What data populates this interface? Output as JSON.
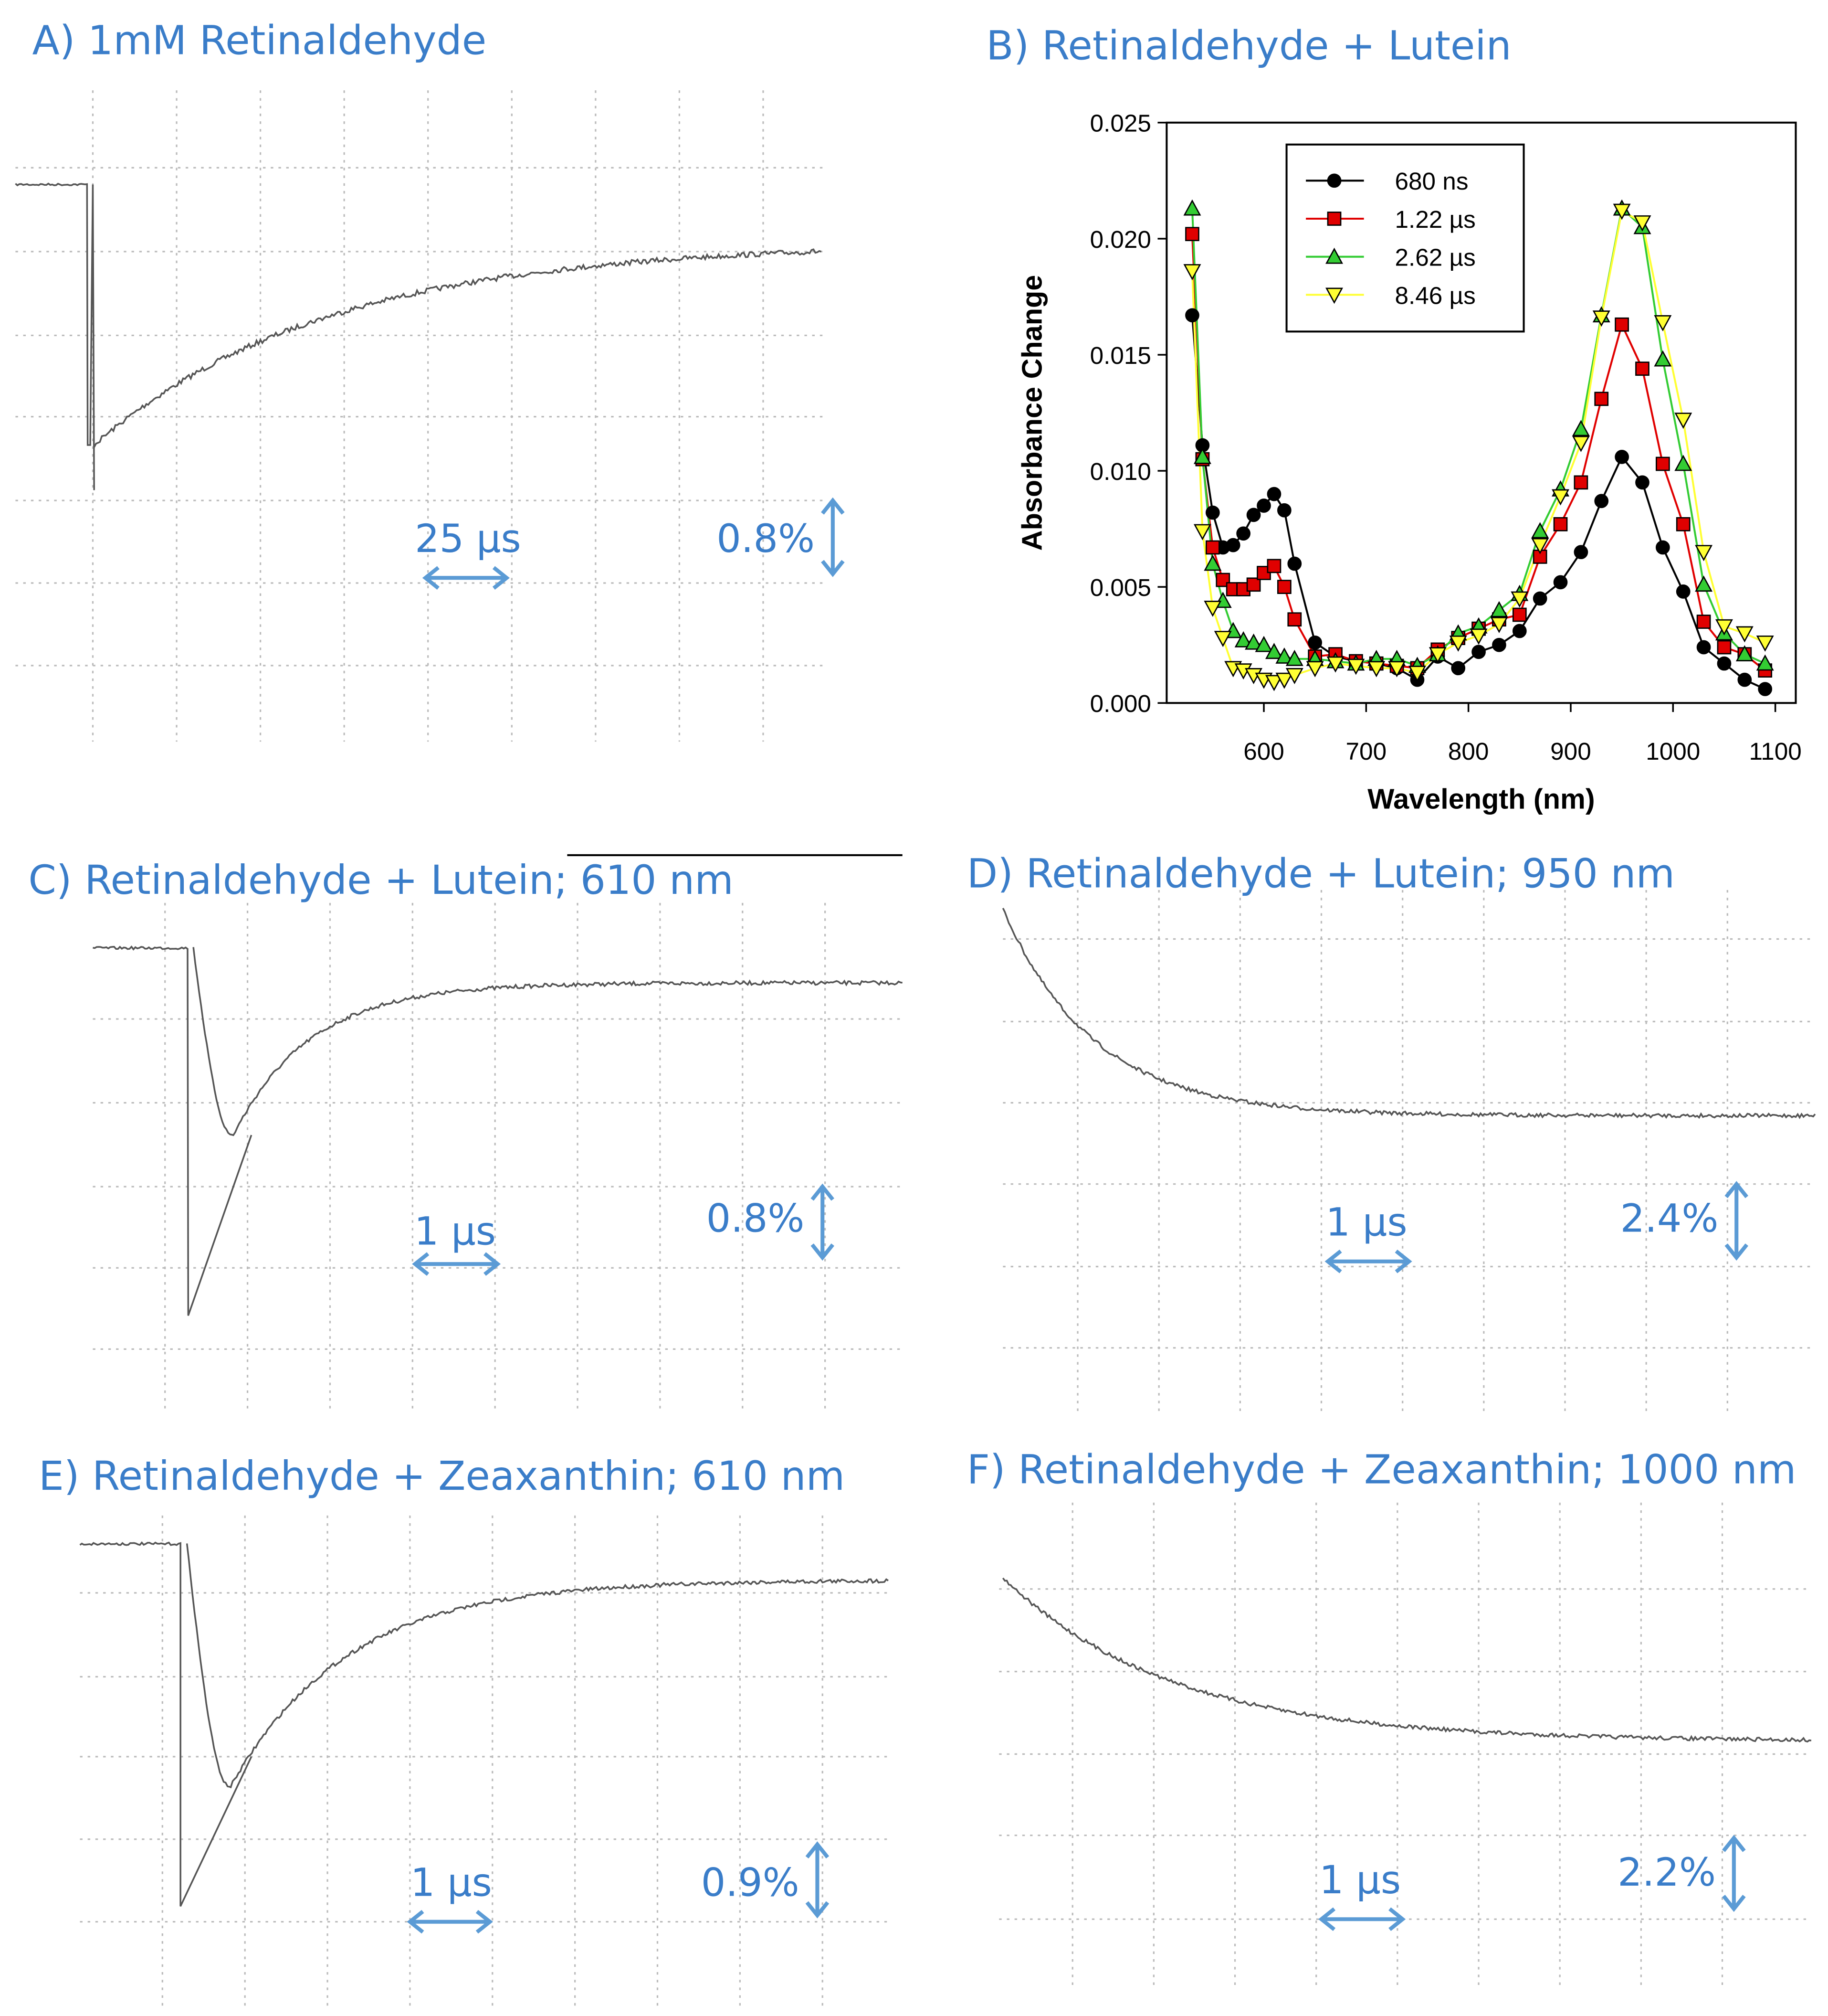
{
  "chart_data": {
    "type": "line",
    "title": "B) Retinaldehyde + Lutein",
    "x_label": "Wavelength (nm)",
    "y_label": "Absorbance Change",
    "x": [
      530,
      540,
      550,
      560,
      570,
      580,
      590,
      600,
      610,
      620,
      630,
      650,
      670,
      690,
      710,
      730,
      750,
      770,
      790,
      810,
      830,
      850,
      870,
      890,
      910,
      930,
      950,
      970,
      990,
      1010,
      1030,
      1050,
      1070,
      1090
    ],
    "series": [
      {
        "name": "680 ns",
        "color": "#000000",
        "marker": "circle",
        "values": [
          0.0167,
          0.0111,
          0.0082,
          0.0067,
          0.0068,
          0.0073,
          0.0081,
          0.0085,
          0.009,
          0.0083,
          0.006,
          0.0026,
          0.002,
          0.0018,
          0.0017,
          0.0015,
          0.001,
          0.002,
          0.0015,
          0.0022,
          0.0025,
          0.0031,
          0.0045,
          0.0052,
          0.0065,
          0.0087,
          0.0106,
          0.0095,
          0.0067,
          0.0048,
          0.0024,
          0.0017,
          0.001,
          0.0006
        ]
      },
      {
        "name": "1.22 µs",
        "color": "#e00000",
        "marker": "square",
        "values": [
          0.0202,
          0.0105,
          0.0067,
          0.0053,
          0.0049,
          0.0049,
          0.0051,
          0.0056,
          0.0059,
          0.005,
          0.0036,
          0.002,
          0.0021,
          0.0018,
          0.0017,
          0.0016,
          0.0015,
          0.0023,
          0.0028,
          0.0032,
          0.0036,
          0.0038,
          0.0063,
          0.0077,
          0.0095,
          0.0131,
          0.0163,
          0.0144,
          0.0103,
          0.0077,
          0.0035,
          0.0024,
          0.0021,
          0.0014
        ]
      },
      {
        "name": "2.62 µs",
        "color": "#33cc33",
        "marker": "triangle-up",
        "values": [
          0.0213,
          0.0106,
          0.006,
          0.0044,
          0.0031,
          0.0027,
          0.0026,
          0.0025,
          0.0022,
          0.002,
          0.0019,
          0.0019,
          0.0018,
          0.0017,
          0.0019,
          0.0019,
          0.0016,
          0.0021,
          0.003,
          0.0033,
          0.004,
          0.0047,
          0.0074,
          0.0092,
          0.0118,
          0.0167,
          0.0213,
          0.0205,
          0.0148,
          0.0103,
          0.0051,
          0.003,
          0.0021,
          0.0017
        ]
      },
      {
        "name": "8.46 µs",
        "color": "#ffff33",
        "marker": "triangle-down",
        "values": [
          0.0186,
          0.0074,
          0.0041,
          0.0028,
          0.0015,
          0.0014,
          0.0012,
          0.001,
          0.0009,
          0.001,
          0.0012,
          0.0015,
          0.0017,
          0.0016,
          0.0015,
          0.0015,
          0.0013,
          0.0021,
          0.0026,
          0.0029,
          0.0034,
          0.0045,
          0.0068,
          0.0089,
          0.0112,
          0.0166,
          0.0212,
          0.0207,
          0.0164,
          0.0122,
          0.0065,
          0.0033,
          0.003,
          0.0026
        ]
      }
    ],
    "xlim": [
      505,
      1120
    ],
    "ylim": [
      0,
      0.025
    ],
    "xticks": [
      600,
      700,
      800,
      900,
      1000,
      1100
    ],
    "yticks": [
      {
        "value": 0,
        "label": "0.000"
      },
      0.005,
      {
        "value": 0.01,
        "label": "0.010"
      },
      0.015,
      {
        "value": 0.02,
        "label": "0.020"
      },
      0.025
    ],
    "legend": "upper-left"
  },
  "panels": [
    {
      "title": "A) 1mM Retinaldehyde",
      "time_scale": "25 µs",
      "amplitude_scale": "0.8%"
    },
    {
      "title": "C) Retinaldehyde + Lutein; 610 nm",
      "time_scale": "1 µs",
      "amplitude_scale": "0.8%"
    },
    {
      "title": "D) Retinaldehyde + Lutein; 950 nm",
      "time_scale": "1 µs",
      "amplitude_scale": "2.4%"
    },
    {
      "title": "E) Retinaldehyde + Zeaxanthin; 610 nm",
      "time_scale": "1 µs",
      "amplitude_scale": "0.9%"
    },
    {
      "title": "F) Retinaldehyde + Zeaxanthin; 1000 nm",
      "time_scale": "1 µs",
      "amplitude_scale": "2.2%"
    }
  ]
}
